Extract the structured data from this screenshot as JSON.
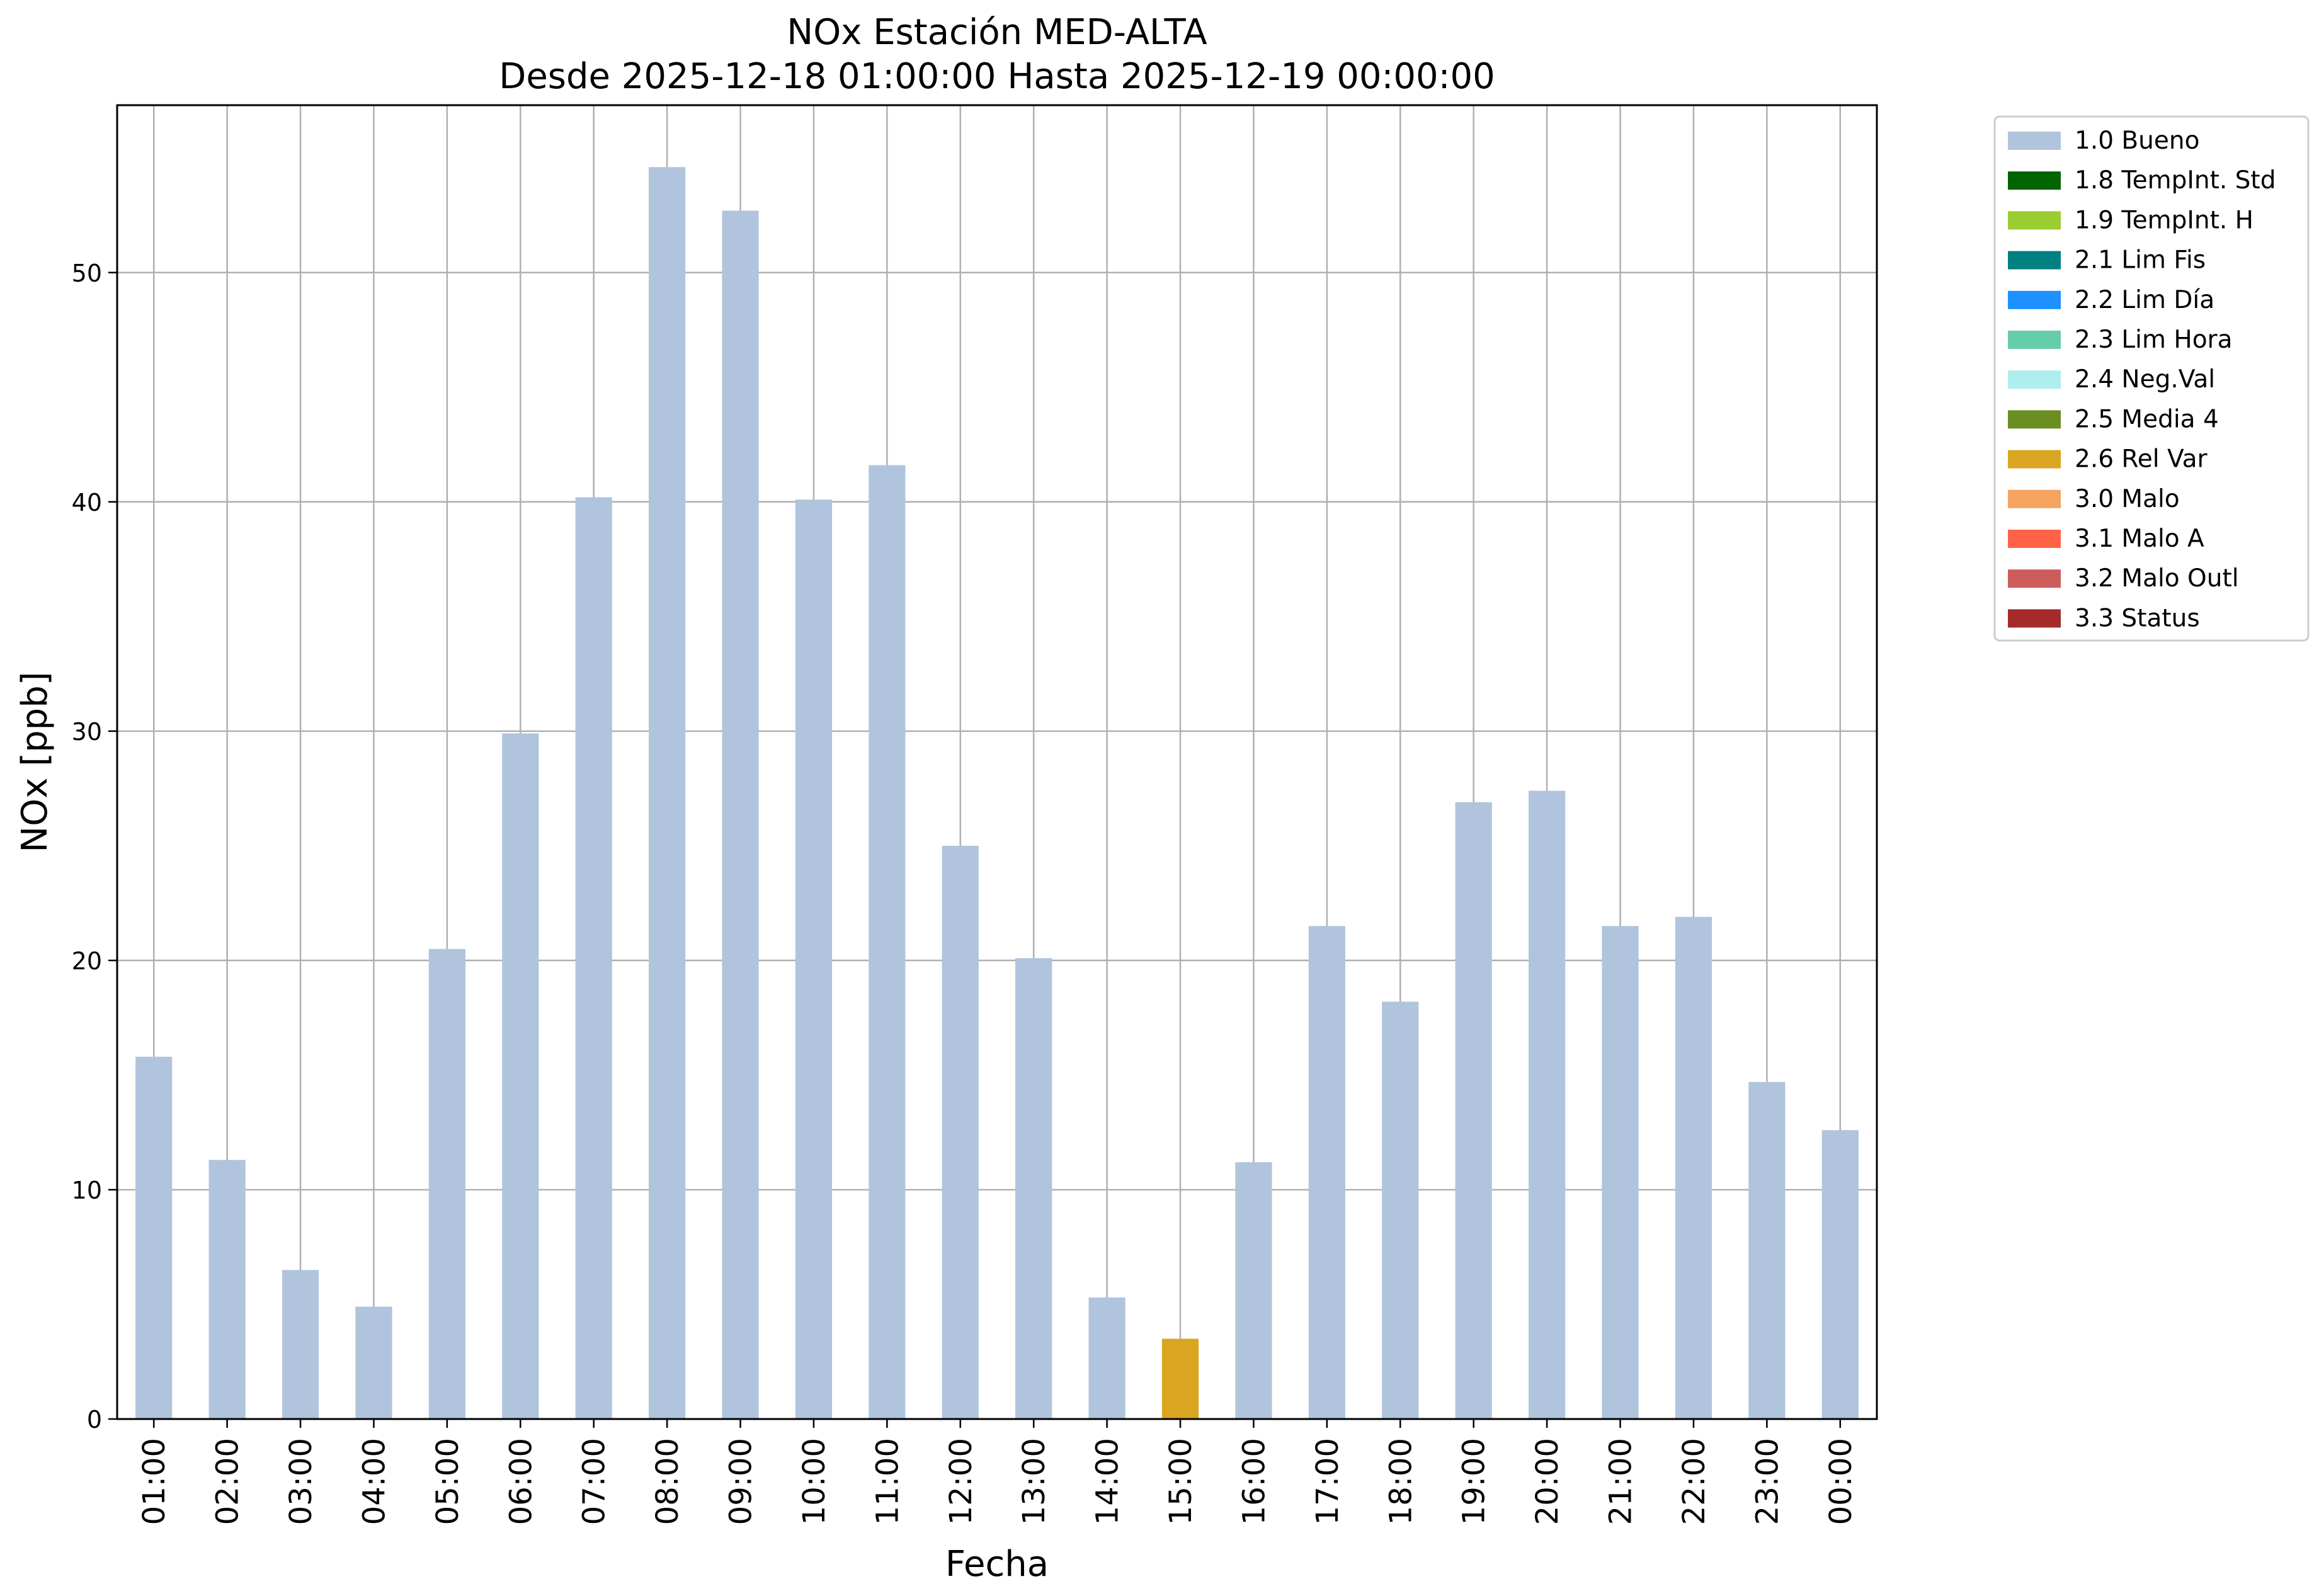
{
  "chart_data": {
    "type": "bar",
    "title": "NOx Estación MED-ALTA",
    "subtitle": "Desde 2025-12-18 01:00:00 Hasta 2025-12-19 00:00:00",
    "xlabel": "Fecha",
    "ylabel": "NOx [ppb]",
    "ylim": [
      0,
      57.3
    ],
    "yticks": [
      0,
      10,
      20,
      30,
      40,
      50
    ],
    "grid": true,
    "legend_position": "outside-top-right",
    "categories": [
      "01:00",
      "02:00",
      "03:00",
      "04:00",
      "05:00",
      "06:00",
      "07:00",
      "08:00",
      "09:00",
      "10:00",
      "11:00",
      "12:00",
      "13:00",
      "14:00",
      "15:00",
      "16:00",
      "17:00",
      "18:00",
      "19:00",
      "20:00",
      "21:00",
      "22:00",
      "23:00",
      "00:00"
    ],
    "values": [
      15.8,
      11.3,
      6.5,
      4.9,
      20.5,
      29.9,
      40.2,
      54.6,
      52.7,
      40.1,
      41.6,
      25.0,
      20.1,
      5.3,
      3.5,
      11.2,
      21.5,
      18.2,
      26.9,
      27.4,
      21.5,
      21.9,
      14.7,
      12.6
    ],
    "flags": [
      "1.0 Bueno",
      "1.0 Bueno",
      "1.0 Bueno",
      "1.0 Bueno",
      "1.0 Bueno",
      "1.0 Bueno",
      "1.0 Bueno",
      "1.0 Bueno",
      "1.0 Bueno",
      "1.0 Bueno",
      "1.0 Bueno",
      "1.0 Bueno",
      "1.0 Bueno",
      "1.0 Bueno",
      "2.6 Rel Var",
      "1.0 Bueno",
      "1.0 Bueno",
      "1.0 Bueno",
      "1.0 Bueno",
      "1.0 Bueno",
      "1.0 Bueno",
      "1.0 Bueno",
      "1.0 Bueno",
      "1.0 Bueno"
    ],
    "legend": [
      {
        "name": "1.0 Bueno",
        "color": "#b0c4de"
      },
      {
        "name": "1.8 TempInt. Std",
        "color": "#006400"
      },
      {
        "name": "1.9 TempInt. H",
        "color": "#9acd32"
      },
      {
        "name": "2.1 Lim Fis",
        "color": "#008080"
      },
      {
        "name": "2.2 Lim Día",
        "color": "#1e90ff"
      },
      {
        "name": "2.3 Lim Hora",
        "color": "#66cdaa"
      },
      {
        "name": "2.4 Neg.Val",
        "color": "#afeeee"
      },
      {
        "name": "2.5 Media 4",
        "color": "#6b8e23"
      },
      {
        "name": "2.6 Rel Var",
        "color": "#daa520"
      },
      {
        "name": "3.0 Malo",
        "color": "#f4a460"
      },
      {
        "name": "3.1 Malo A",
        "color": "#ff6347"
      },
      {
        "name": "3.2 Malo Outl",
        "color": "#cd5c5c"
      },
      {
        "name": "3.3 Status",
        "color": "#a52a2a"
      }
    ]
  }
}
